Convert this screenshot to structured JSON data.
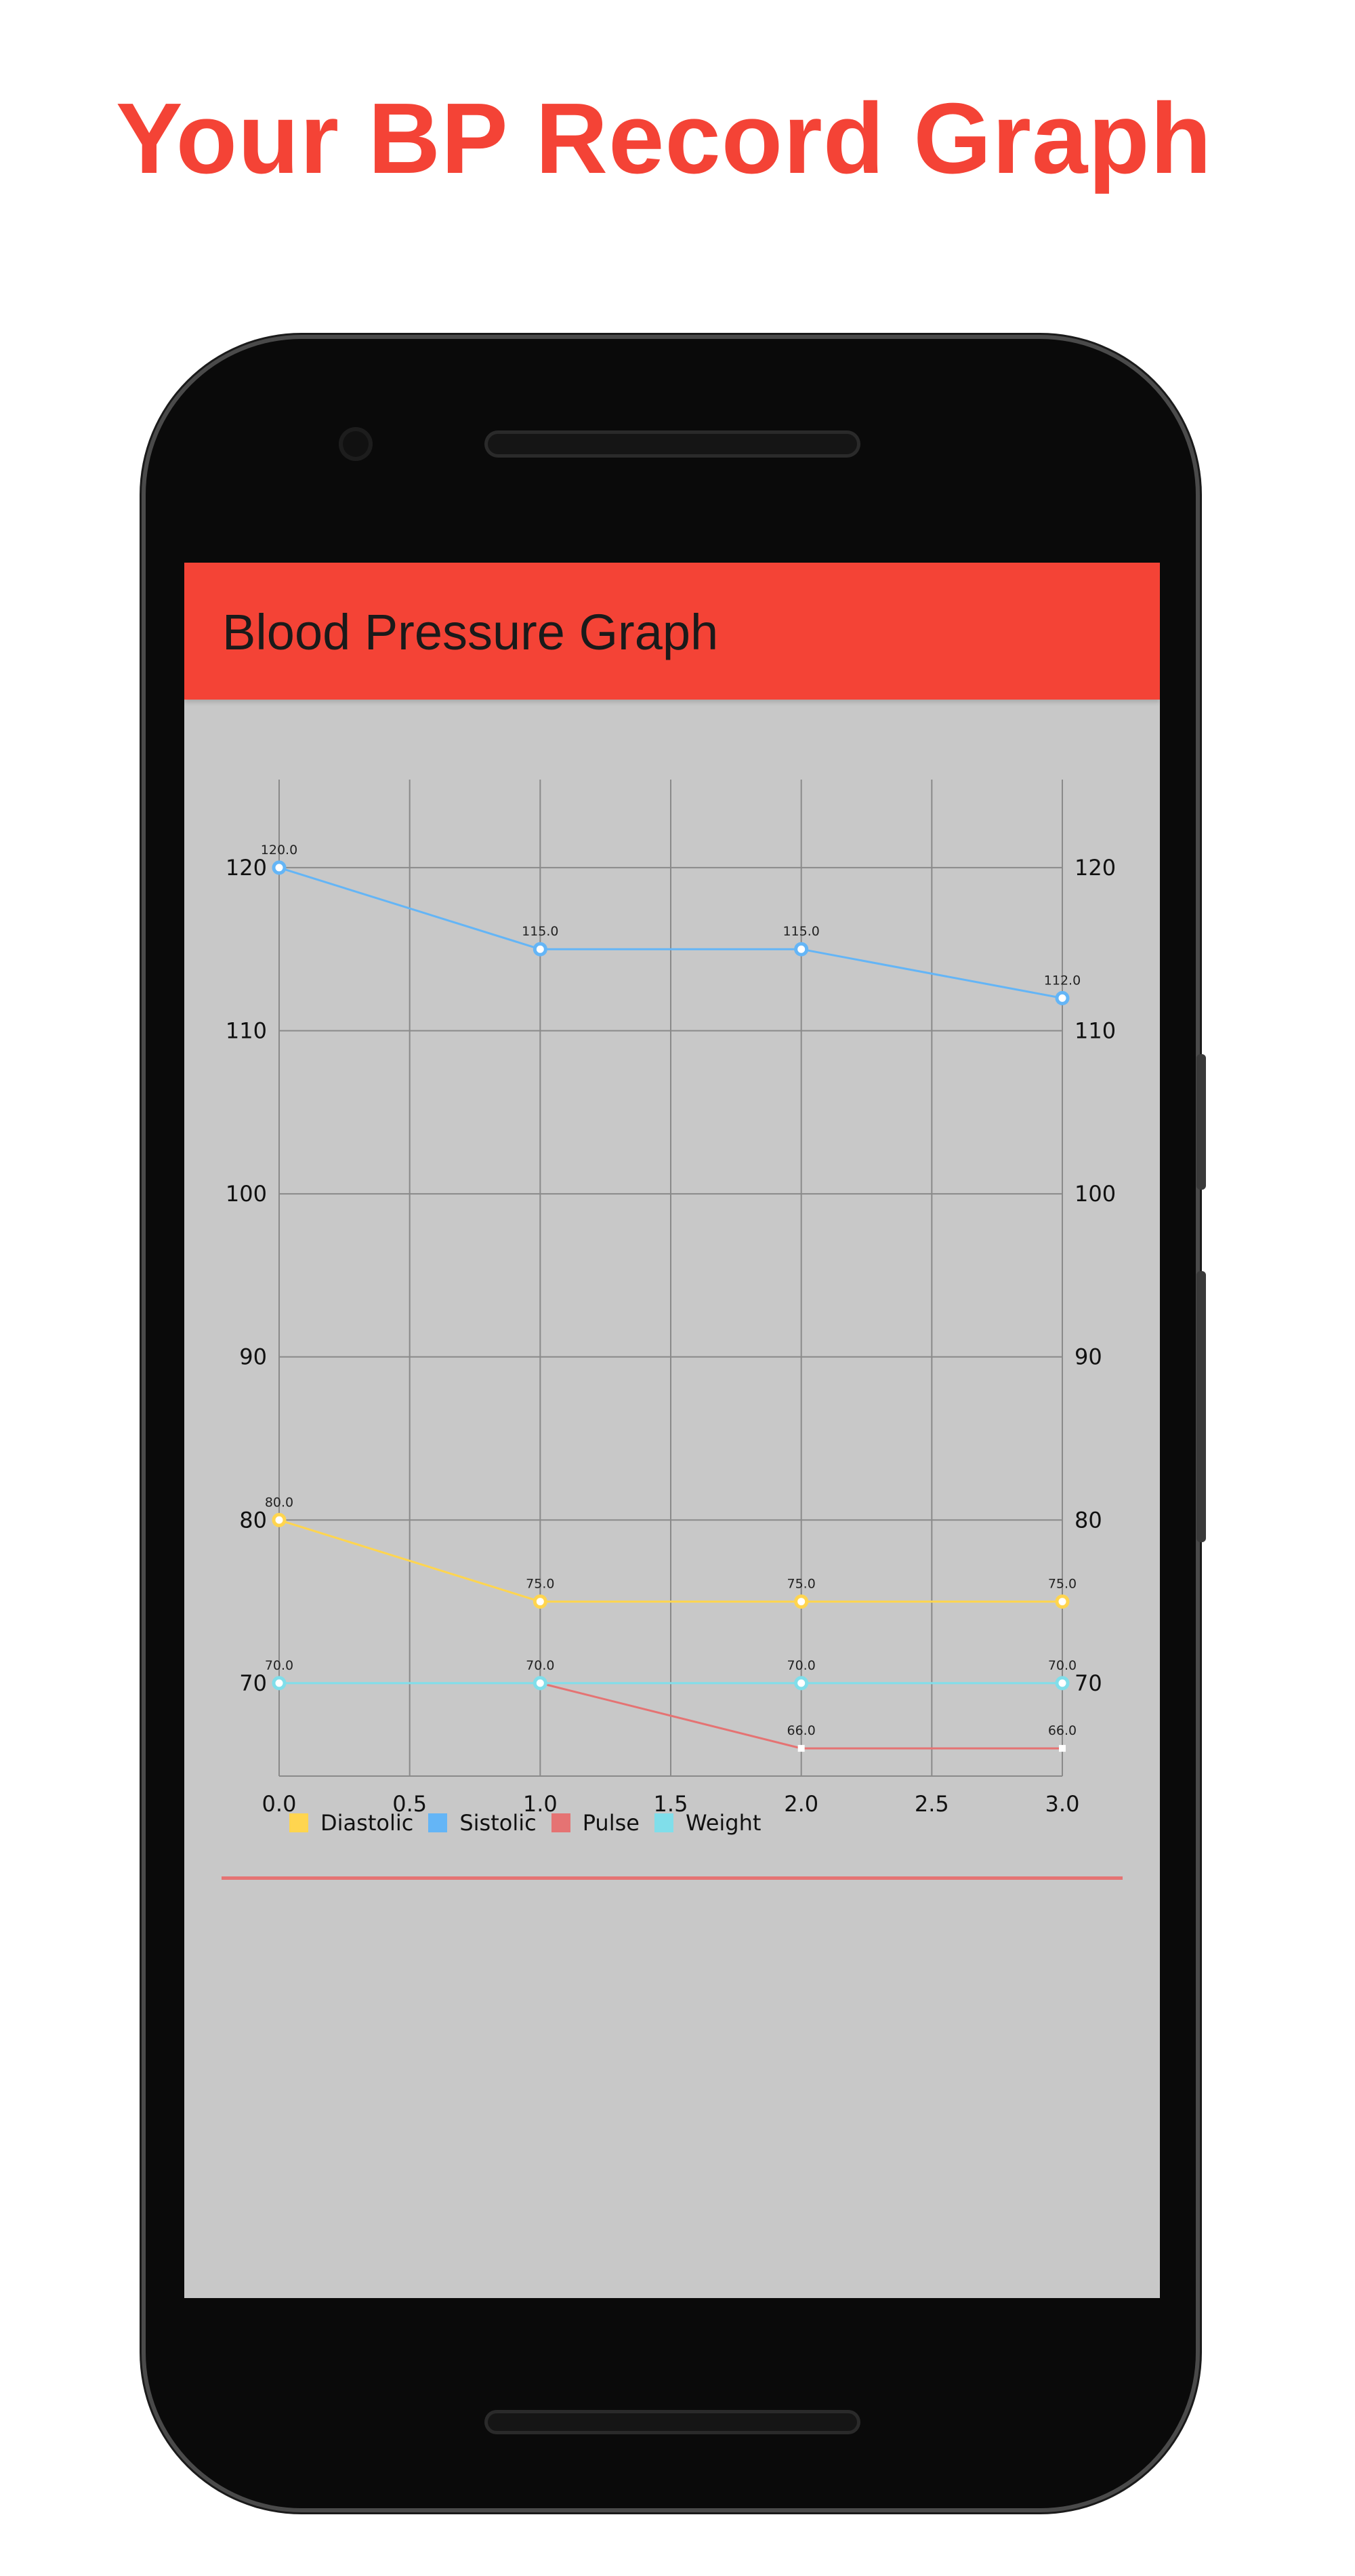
{
  "promo": {
    "title": "Your BP Record Graph"
  },
  "app": {
    "title": "Blood Pressure Graph"
  },
  "colors": {
    "accent": "#f44336",
    "screen_bg": "#c8c8c8"
  },
  "chart_data": {
    "type": "line",
    "x": [
      0,
      1,
      2,
      3
    ],
    "xlim": [
      0,
      3
    ],
    "ylim": [
      64.3,
      125.4
    ],
    "x_ticks": [
      "0.0",
      "0.5",
      "1.0",
      "1.5",
      "2.0",
      "2.5",
      "3.0"
    ],
    "y_ticks": [
      70,
      80,
      90,
      100,
      110,
      120
    ],
    "grid": true,
    "legend_position": "bottom-left",
    "series": [
      {
        "name": "Diastolic",
        "color": "#ffd54f",
        "values": [
          80,
          75,
          75,
          75
        ],
        "labels": [
          "80.0",
          "75.0",
          "75.0",
          "75.0"
        ]
      },
      {
        "name": "Sistolic",
        "color": "#64b5f6",
        "values": [
          120,
          115,
          115,
          112
        ],
        "labels": [
          "120.0",
          "115.0",
          "115.0",
          "112.0"
        ]
      },
      {
        "name": "Pulse",
        "color": "#e57373",
        "values": [
          null,
          70,
          66,
          66
        ],
        "labels": [
          "",
          "",
          "66.0",
          "66.0"
        ]
      },
      {
        "name": "Weight",
        "color": "#80deea",
        "values": [
          70,
          70,
          70,
          70
        ],
        "labels": [
          "70.0",
          "70.0",
          "70.0",
          "70.0"
        ]
      }
    ]
  }
}
